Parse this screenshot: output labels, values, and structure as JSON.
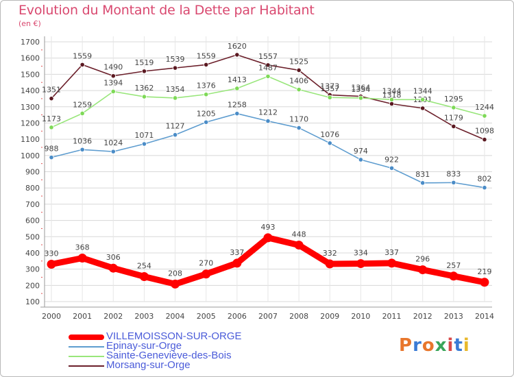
{
  "title": "Evolution du Montant de la Dette par Habitant",
  "subtitle": "(en €)",
  "logo": {
    "text": "Proxiti",
    "letters": [
      "P",
      "r",
      "o",
      "x",
      "i",
      "t",
      "i"
    ],
    "colors": [
      "#e8762c",
      "#3a7bd5",
      "#e8762c",
      "#3aa55a",
      "#d94a4a",
      "#3a7bd5",
      "#e8b82c"
    ]
  },
  "chart_data": {
    "type": "line",
    "x": [
      "2000",
      "2001",
      "2002",
      "2003",
      "2004",
      "2005",
      "2006",
      "2007",
      "2008",
      "2009",
      "2010",
      "2011",
      "2012",
      "2013",
      "2014"
    ],
    "ylim": [
      100,
      1700
    ],
    "yticks": [
      "100",
      "200",
      "300",
      "400",
      "500",
      "600",
      "700",
      "800",
      "900",
      "1000",
      "1100",
      "1200",
      "1300",
      "1400",
      "1500",
      "1600",
      "1700"
    ],
    "grid": true,
    "legend": "bottom-left",
    "series": [
      {
        "name": "Morsang-sur-Orge",
        "color": "#6b1f2a",
        "marker": "#5a1820",
        "values": [
          1351,
          1559,
          1490,
          1519,
          1539,
          1559,
          1620,
          1557,
          1525,
          1373,
          1364,
          1318,
          1291,
          1179,
          1098
        ]
      },
      {
        "name": "Sainte-Geneviève-des-Bois",
        "color": "#98e67a",
        "marker": "#7ed957",
        "values": [
          1173,
          1259,
          1394,
          1362,
          1354,
          1376,
          1413,
          1487,
          1406,
          1357,
          1354,
          1344,
          1344,
          1295,
          1244
        ]
      },
      {
        "name": "Epinay-sur-Orge",
        "color": "#5d9ccf",
        "marker": "#4a8cc7",
        "values": [
          988,
          1036,
          1024,
          1071,
          1127,
          1205,
          1258,
          1212,
          1170,
          1076,
          974,
          922,
          831,
          833,
          802
        ]
      },
      {
        "name": "VILLEMOISSON-SUR-ORGE",
        "color": "#ff0000",
        "marker": "#ff0000",
        "values": [
          330,
          368,
          306,
          254,
          208,
          270,
          337,
          493,
          448,
          332,
          334,
          337,
          296,
          257,
          219
        ]
      }
    ]
  },
  "legend": [
    {
      "label": "VILLEMOISSON-SUR-ORGE",
      "color": "#ff0000",
      "text_color": "#4a5bd9",
      "thick": true
    },
    {
      "label": "Epinay-sur-Orge",
      "color": "#5d9ccf",
      "text_color": "#4a5bd9",
      "thick": false
    },
    {
      "label": "Sainte-Geneviève-des-Bois",
      "color": "#98e67a",
      "text_color": "#4a5bd9",
      "thick": false
    },
    {
      "label": "Morsang-sur-Orge",
      "color": "#6b1f2a",
      "text_color": "#4a5bd9",
      "thick": false
    }
  ]
}
